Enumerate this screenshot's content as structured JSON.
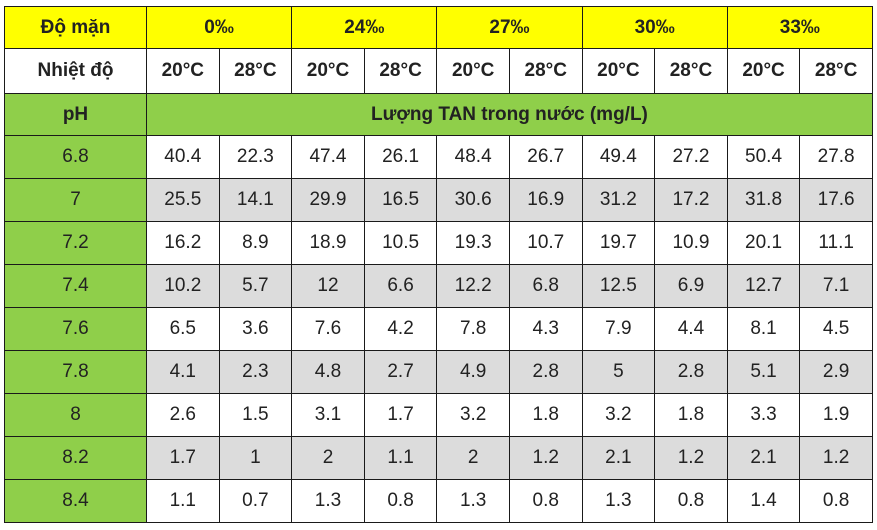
{
  "header": {
    "salinity_label": "Độ mặn",
    "salinities": [
      "0‰",
      "24‰",
      "27‰",
      "30‰",
      "33‰"
    ],
    "temperature_label": "Nhiệt độ",
    "temperatures": [
      "20°C",
      "28°C",
      "20°C",
      "28°C",
      "20°C",
      "28°C",
      "20°C",
      "28°C",
      "20°C",
      "28°C"
    ],
    "ph_label": "pH",
    "tan_title": "Lượng TAN trong nước (mg/L)"
  },
  "rows": [
    {
      "ph": "6.8",
      "values": [
        "40.4",
        "22.3",
        "47.4",
        "26.1",
        "48.4",
        "26.7",
        "49.4",
        "27.2",
        "50.4",
        "27.8"
      ]
    },
    {
      "ph": "7",
      "values": [
        "25.5",
        "14.1",
        "29.9",
        "16.5",
        "30.6",
        "16.9",
        "31.2",
        "17.2",
        "31.8",
        "17.6"
      ]
    },
    {
      "ph": "7.2",
      "values": [
        "16.2",
        "8.9",
        "18.9",
        "10.5",
        "19.3",
        "10.7",
        "19.7",
        "10.9",
        "20.1",
        "11.1"
      ]
    },
    {
      "ph": "7.4",
      "values": [
        "10.2",
        "5.7",
        "12",
        "6.6",
        "12.2",
        "6.8",
        "12.5",
        "6.9",
        "12.7",
        "7.1"
      ]
    },
    {
      "ph": "7.6",
      "values": [
        "6.5",
        "3.6",
        "7.6",
        "4.2",
        "7.8",
        "4.3",
        "7.9",
        "4.4",
        "8.1",
        "4.5"
      ]
    },
    {
      "ph": "7.8",
      "values": [
        "4.1",
        "2.3",
        "4.8",
        "2.7",
        "4.9",
        "2.8",
        "5",
        "2.8",
        "5.1",
        "2.9"
      ]
    },
    {
      "ph": "8",
      "values": [
        "2.6",
        "1.5",
        "3.1",
        "1.7",
        "3.2",
        "1.8",
        "3.2",
        "1.8",
        "3.3",
        "1.9"
      ]
    },
    {
      "ph": "8.2",
      "values": [
        "1.7",
        "1",
        "2",
        "1.1",
        "2",
        "1.2",
        "2.1",
        "1.2",
        "2.1",
        "1.2"
      ]
    },
    {
      "ph": "8.4",
      "values": [
        "1.1",
        "0.7",
        "1.3",
        "0.8",
        "1.3",
        "0.8",
        "1.3",
        "0.8",
        "1.4",
        "0.8"
      ]
    }
  ]
}
